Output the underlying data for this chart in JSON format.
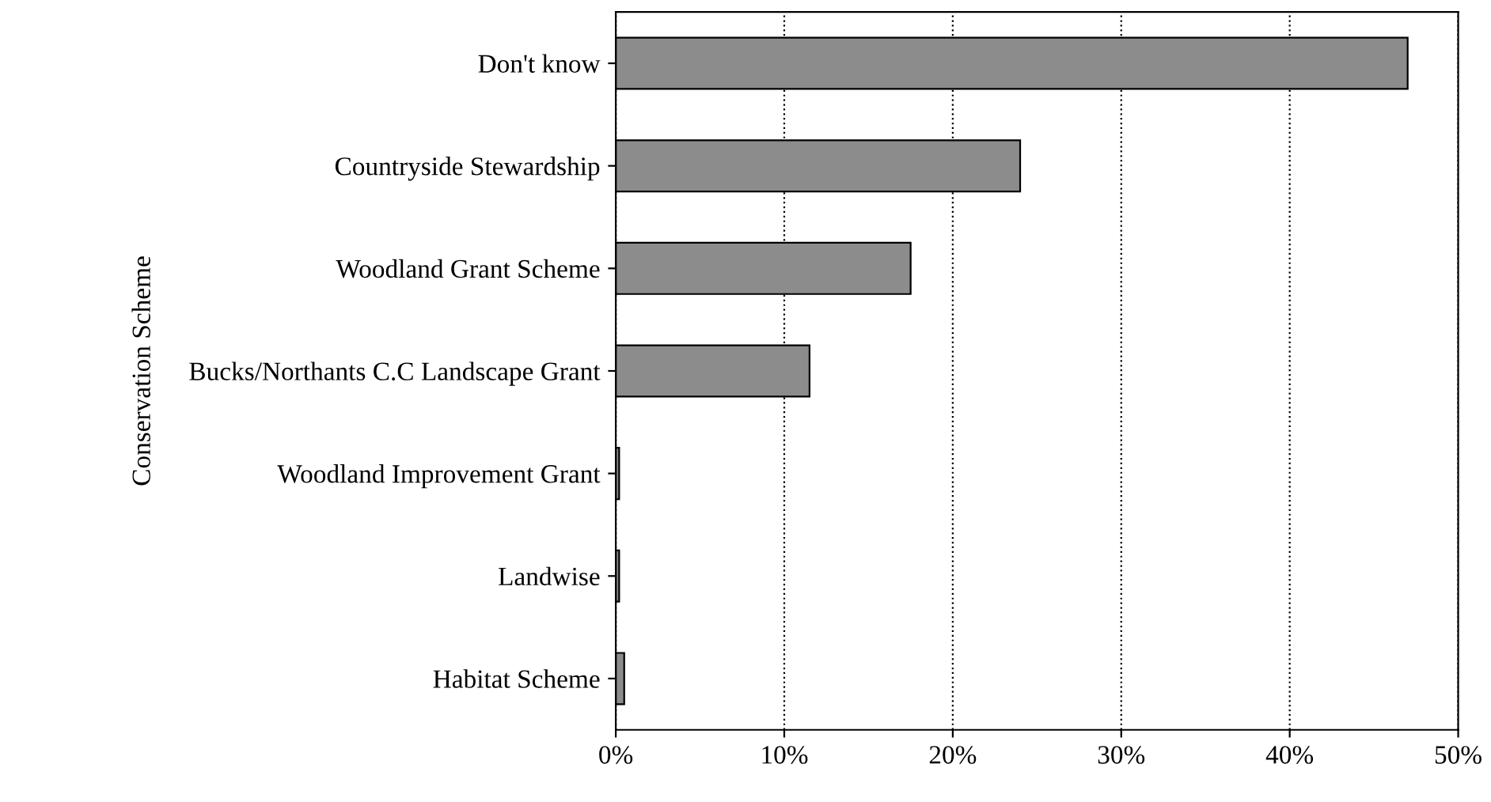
{
  "chart_data": {
    "type": "bar",
    "orientation": "horizontal",
    "ylabel": "Conservation Scheme",
    "categories": [
      "Don't know",
      "Countryside Stewardship",
      "Woodland Grant Scheme",
      "Bucks/Northants C.C Landscape Grant",
      "Woodland Improvement Grant",
      "Landwise",
      "Habitat Scheme"
    ],
    "values": [
      47,
      24,
      17.5,
      11.5,
      0.2,
      0.2,
      0.5
    ],
    "color": "#8c8c8c",
    "xlim": [
      0,
      50
    ],
    "xticks": [
      {
        "value": 0,
        "label": "0%"
      },
      {
        "value": 10,
        "label": "10%"
      },
      {
        "value": 20,
        "label": "20%"
      },
      {
        "value": 30,
        "label": "30%"
      },
      {
        "value": 40,
        "label": "40%"
      },
      {
        "value": 50,
        "label": "50%"
      }
    ],
    "grid": "x",
    "legend": false
  }
}
